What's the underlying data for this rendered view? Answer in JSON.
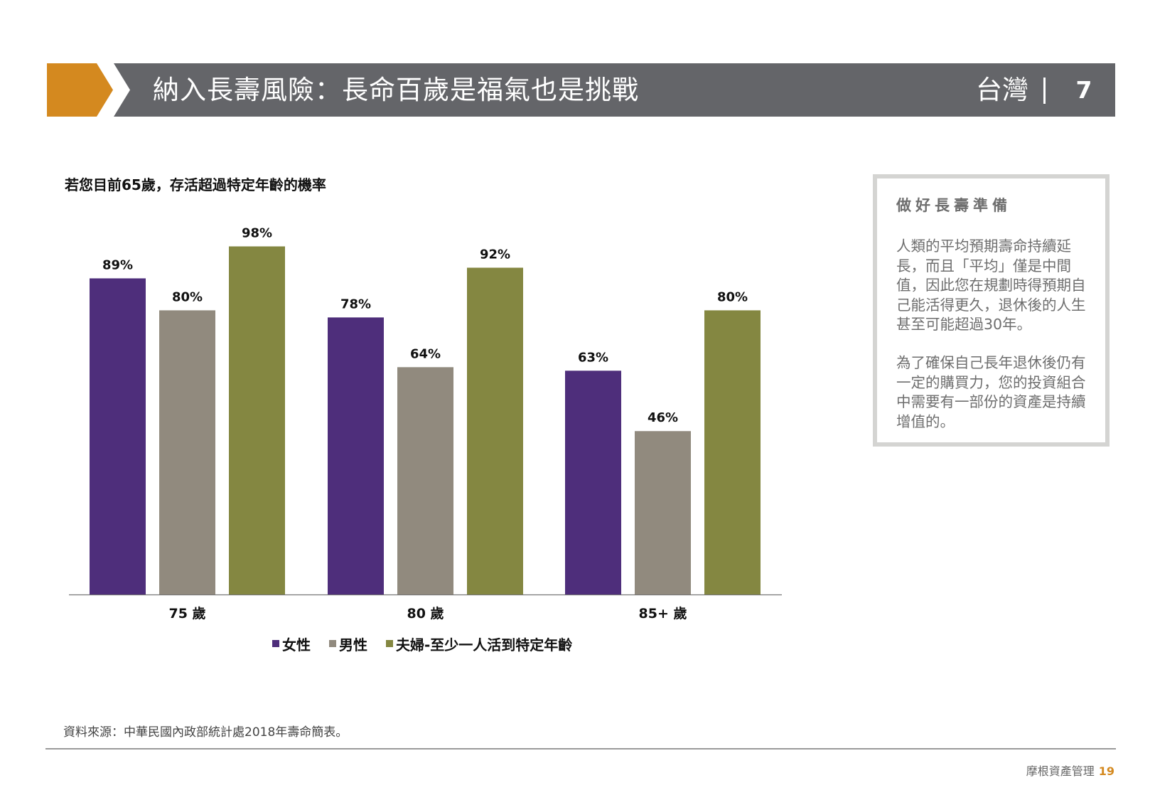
{
  "header": {
    "title": "納入長壽風險：長命百歲是福氣也是挑戰",
    "region": "台灣",
    "page_number": "7",
    "arrow_color": "#d4891f",
    "bar_color": "#646569"
  },
  "chart_data": {
    "type": "bar",
    "title": "若您目前65歲，存活超過特定年齡的機率",
    "categories": [
      "75 歲",
      "80 歲",
      "85+ 歲"
    ],
    "series": [
      {
        "name": "女性",
        "color": "#4e2e7b",
        "values": [
          89,
          78,
          63
        ],
        "labels": [
          "89%",
          "78%",
          "63%"
        ]
      },
      {
        "name": "男性",
        "color": "#918a7e",
        "values": [
          80,
          64,
          46
        ],
        "labels": [
          "80%",
          "64%",
          "46%"
        ]
      },
      {
        "name": "夫婦-至少一人活到特定年齡",
        "color": "#848741",
        "values": [
          98,
          92,
          80
        ],
        "labels": [
          "98%",
          "92%",
          "80%"
        ]
      }
    ],
    "ylim": [
      0,
      100
    ],
    "grid": false,
    "legend_position": "bottom"
  },
  "sidebox": {
    "heading": "做好長壽準備",
    "paragraphs": [
      "人類的平均預期壽命持續延長，而且「平均」僅是中間值，因此您在規劃時得預期自己能活得更久，退休後的人生甚至可能超過30年。",
      "為了確保自己長年退休後仍有一定的購買力，您的投資組合中需要有一部份的資產是持續增值的。"
    ]
  },
  "source": "資料來源：中華民國內政部統計處2018年壽命簡表。",
  "footer": {
    "company": "摩根資產管理",
    "page": "19"
  }
}
